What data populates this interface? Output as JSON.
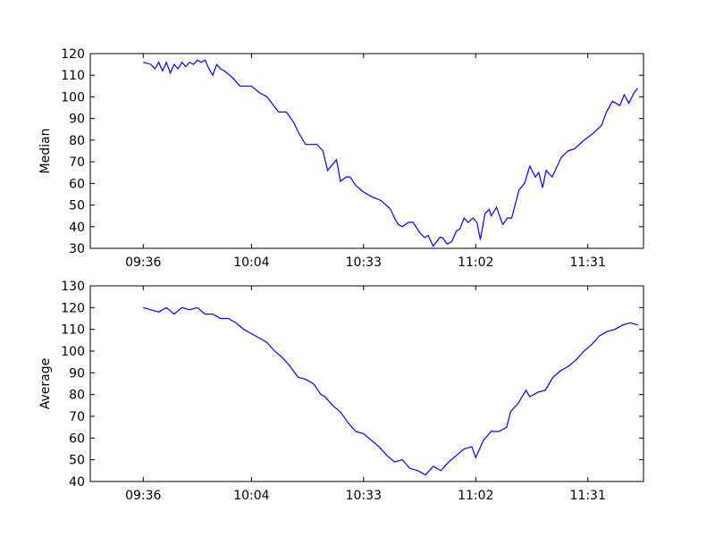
{
  "chart_data": [
    {
      "type": "line",
      "ylabel": "Median",
      "xlim": [
        562.3,
        705.4
      ],
      "ylim": [
        30,
        120
      ],
      "xticks": [
        {
          "value": 576,
          "label": "09:36"
        },
        {
          "value": 604,
          "label": "10:04"
        },
        {
          "value": 633,
          "label": "10:33"
        },
        {
          "value": 662,
          "label": "11:02"
        },
        {
          "value": 691,
          "label": "11:31"
        }
      ],
      "yticks": [
        30,
        40,
        50,
        60,
        70,
        80,
        90,
        100,
        110,
        120
      ],
      "series": [
        {
          "color": "#0000ff",
          "x": [
            576,
            578,
            579,
            580,
            581,
            582,
            583,
            584,
            585,
            586,
            587,
            588,
            589,
            590,
            591,
            592,
            593,
            594,
            595,
            596,
            597,
            599,
            601,
            604,
            606,
            608,
            611,
            613,
            615,
            616,
            618,
            621,
            622.5,
            623.7,
            626,
            627,
            628.5,
            629.5,
            631,
            633,
            635,
            637.6,
            640,
            641,
            642,
            643,
            644.6,
            645.8,
            647.6,
            648.8,
            649.7,
            651,
            652.7,
            653.4,
            654.6,
            655.8,
            657,
            657.9,
            659,
            660,
            661.3,
            662.3,
            663.2,
            664.4,
            665.5,
            666,
            667.4,
            669,
            670.2,
            671.3,
            673.2,
            674.6,
            676,
            677.4,
            678.3,
            679.3,
            680.2,
            681.8,
            684.1,
            685.8,
            687.6,
            690,
            692.3,
            694.6,
            695.8,
            697.4,
            699.3,
            700.4,
            701.6,
            703,
            703.9
          ],
          "values": [
            116,
            115,
            113,
            116,
            112,
            116,
            111,
            115,
            113,
            116,
            114,
            116,
            115,
            117,
            116,
            117,
            113,
            110,
            115,
            113,
            112,
            109,
            105,
            105,
            102,
            100,
            93,
            93,
            88,
            84,
            78,
            78,
            75,
            66,
            71,
            61,
            63,
            63,
            59,
            56,
            54,
            52,
            48,
            44,
            41,
            40,
            42,
            42,
            37,
            35,
            36,
            31,
            35,
            35,
            32,
            33,
            38,
            39,
            44,
            42,
            44,
            42,
            34,
            46,
            48,
            45,
            49,
            41,
            44,
            44,
            57,
            60,
            68,
            63,
            65,
            58,
            66,
            63,
            72,
            75,
            76,
            80,
            83,
            87,
            93,
            98,
            96,
            101,
            97,
            102,
            104
          ]
        }
      ]
    },
    {
      "type": "line",
      "ylabel": "Average",
      "xlim": [
        562.3,
        705.4
      ],
      "ylim": [
        40,
        130
      ],
      "xticks": [
        {
          "value": 576,
          "label": "09:36"
        },
        {
          "value": 604,
          "label": "10:04"
        },
        {
          "value": 633,
          "label": "10:33"
        },
        {
          "value": 662,
          "label": "11:02"
        },
        {
          "value": 691,
          "label": "11:31"
        }
      ],
      "yticks": [
        40,
        50,
        60,
        70,
        80,
        90,
        100,
        110,
        120,
        130
      ],
      "series": [
        {
          "color": "#0000ff",
          "x": [
            576,
            578,
            580,
            582,
            584,
            586,
            588,
            590,
            592,
            594,
            596,
            598,
            600,
            602,
            604,
            606,
            608,
            610,
            612,
            614,
            616,
            618,
            620,
            622,
            623,
            625,
            627,
            629,
            631,
            633,
            635,
            637,
            639,
            641,
            643,
            645,
            647,
            649,
            651,
            653,
            655,
            657,
            659,
            661,
            662,
            664,
            666,
            668,
            670,
            671,
            673,
            675,
            676,
            678,
            680,
            682,
            684,
            686,
            688,
            690,
            692,
            694,
            696,
            698,
            700,
            702,
            704
          ],
          "values": [
            120,
            119,
            118,
            120,
            117,
            120,
            119,
            120,
            117,
            117,
            115,
            115,
            113,
            110,
            108,
            106,
            104,
            100,
            97,
            93,
            88,
            87,
            85,
            80,
            79,
            75,
            72,
            67,
            63,
            62,
            59,
            56,
            52,
            49,
            50,
            46,
            45,
            43,
            47,
            45,
            49,
            52,
            55,
            56,
            51,
            59,
            63,
            63,
            65,
            72,
            76,
            82,
            79,
            81,
            82,
            88,
            91,
            93,
            96,
            100,
            103,
            107,
            109,
            110,
            112,
            113,
            112
          ]
        }
      ]
    }
  ]
}
